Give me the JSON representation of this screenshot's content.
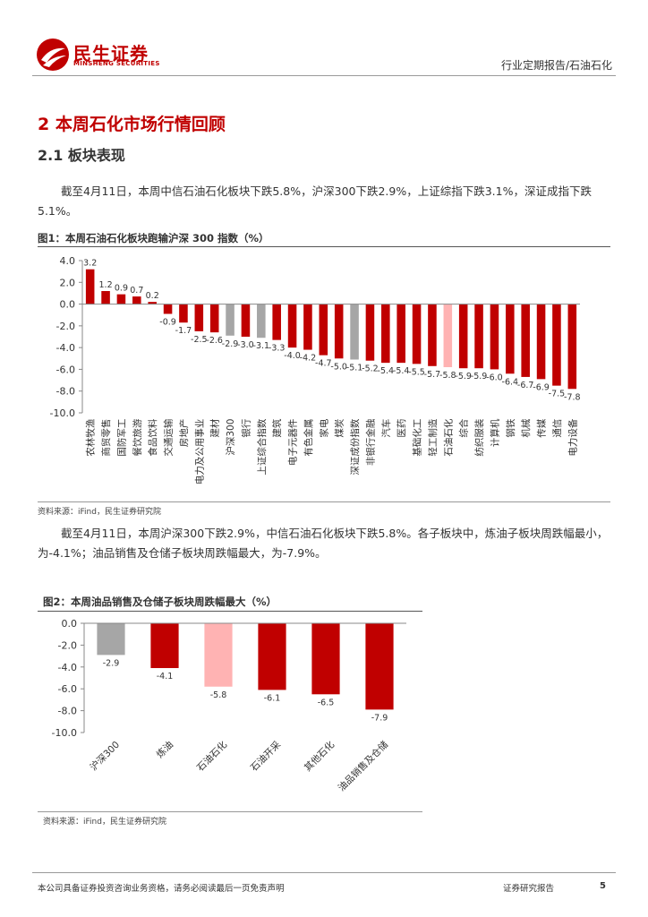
{
  "header": {
    "brand_cn": "民生证券",
    "brand_en": "MINSHENG SECURITIES",
    "report_type": "行业定期报告/石油石化",
    "brand_color": "#c00000"
  },
  "section": {
    "title": "2 本周石化市场行情回顾",
    "subtitle": "2.1 板块表现"
  },
  "paragraph1": "截至4月11日，本周中信石油石化板块下跌5.8%，沪深300下跌2.9%，上证综指下跌3.1%，深证成指下跌5.1%。",
  "paragraph2": "截至4月11日，本周沪深300下跌2.9%，中信石油石化板块下跌5.8%。各子板块中，炼油子板块周跌幅最小，为-4.1%；油品销售及仓储子板块周跌幅最大，为-7.9%。",
  "figure1": {
    "title": "图1：本周石油石化板块跑输沪深 300 指数（%）",
    "source": "资料来源：iFind，民生证券研究院"
  },
  "figure2": {
    "title": "图2：本周油品销售及仓储子板块周跌幅最大（%）",
    "source": "资料来源：iFind，民生证券研究院"
  },
  "chart_data": [
    {
      "type": "bar",
      "categories": [
        "农林牧渔",
        "商贸零售",
        "国防军工",
        "餐饮旅游",
        "食品饮料",
        "交通运输",
        "房地产",
        "电力及公用事业",
        "建材",
        "沪深300",
        "银行",
        "上证综合指数",
        "建筑",
        "电子元器件",
        "有色金属",
        "家电",
        "煤炭",
        "深证成份指数",
        "非银行金融",
        "汽车",
        "医药",
        "基础化工",
        "轻工制造",
        "石油石化",
        "综合",
        "纺织服装",
        "计算机",
        "钢铁",
        "机械",
        "传媒",
        "通信",
        "电力设备"
      ],
      "values": [
        3.2,
        1.2,
        0.9,
        0.7,
        0.2,
        -0.9,
        -1.7,
        -2.5,
        -2.6,
        -2.9,
        -3.0,
        -3.1,
        -3.3,
        -4.0,
        -4.2,
        -4.7,
        -5.0,
        -5.1,
        -5.2,
        -5.4,
        -5.4,
        -5.5,
        -5.7,
        -5.8,
        -5.9,
        -5.9,
        -6.0,
        -6.4,
        -6.7,
        -6.9,
        -7.5,
        -7.8
      ],
      "labels": [
        "3.2",
        "1.2",
        "0.9",
        "0.7",
        "0.2",
        "-0.9",
        "-1.7",
        "-2.5",
        "-2.6",
        "-2.9",
        "-3.0",
        "-3.1",
        "-3.3",
        "-4.0",
        "-4.2",
        "-4.7",
        "-5.0",
        "-5.1",
        "-5.2",
        "-5.4",
        "-5.4",
        "-5.5",
        "-5.7",
        "-5.8",
        "-5.9",
        "-5.9",
        "-6.0",
        "-6.4",
        "-6.7",
        "-6.9",
        "-7.5",
        "-7.8"
      ],
      "colors": [
        "#c00000",
        "#c00000",
        "#c00000",
        "#c00000",
        "#c00000",
        "#c00000",
        "#c00000",
        "#c00000",
        "#c00000",
        "#a6a6a6",
        "#c00000",
        "#a6a6a6",
        "#c00000",
        "#c00000",
        "#c00000",
        "#c00000",
        "#c00000",
        "#a6a6a6",
        "#c00000",
        "#c00000",
        "#c00000",
        "#c00000",
        "#c00000",
        "#ffb3b3",
        "#c00000",
        "#c00000",
        "#c00000",
        "#c00000",
        "#c00000",
        "#c00000",
        "#c00000",
        "#c00000"
      ],
      "yticks": [
        "4.0",
        "2.0",
        "0.0",
        "-2.0",
        "-4.0",
        "-6.0",
        "-8.0",
        "-10.0"
      ],
      "ylim": [
        -10,
        4
      ],
      "grid": false
    },
    {
      "type": "bar",
      "categories": [
        "沪深300",
        "炼油",
        "石油石化",
        "石油开采",
        "其他石化",
        "油品销售及仓储"
      ],
      "values": [
        -2.9,
        -4.1,
        -5.8,
        -6.1,
        -6.5,
        -7.9
      ],
      "labels": [
        "-2.9",
        "-4.1",
        "-5.8",
        "-6.1",
        "-6.5",
        "-7.9"
      ],
      "colors": [
        "#a6a6a6",
        "#c00000",
        "#ffb3b3",
        "#c00000",
        "#c00000",
        "#c00000"
      ],
      "yticks": [
        "0.0",
        "-2.0",
        "-4.0",
        "-6.0",
        "-8.0",
        "-10.0"
      ],
      "ylim": [
        -10,
        0
      ],
      "grid": false
    }
  ],
  "footer": {
    "disclaimer": "本公司具备证券投资咨询业务资格，请务必阅读最后一页免责声明",
    "doc_type": "证券研究报告",
    "page": "5"
  }
}
